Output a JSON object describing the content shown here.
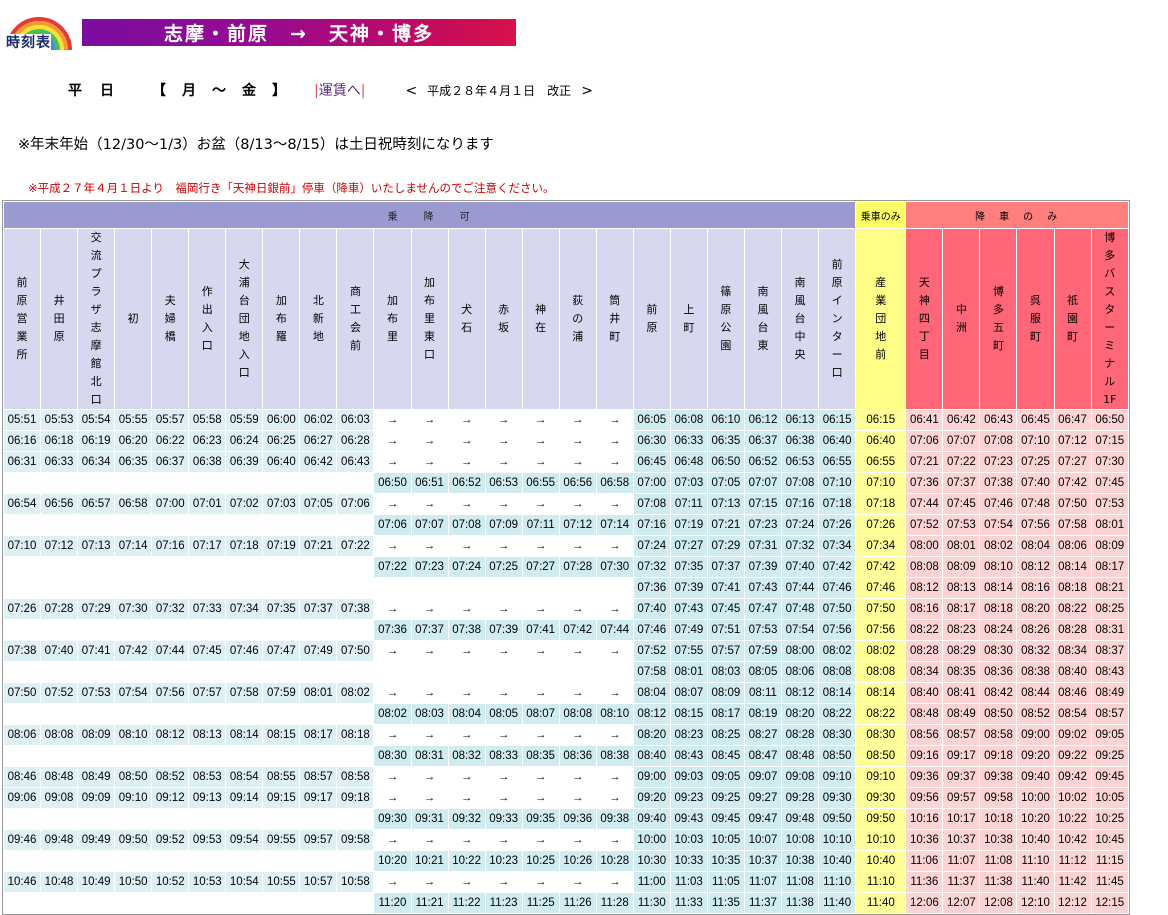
{
  "logo": {
    "text": "時刻表"
  },
  "route": {
    "title": "志摩・前原　→　天神・博多"
  },
  "day": {
    "label": "平日",
    "range": "【月～金】"
  },
  "fare": {
    "link": "運賃へ"
  },
  "revision": {
    "prev": "<",
    "text": "平成２８年４月１日　改正",
    "next": ">"
  },
  "notes": {
    "main": "※年末年始（12/30～1/3）お盆（8/13～8/15）は土日祝時刻になります",
    "red": "※平成２７年４月１日より　福岡行き「天神日銀前」停車（降車）いたしませんのでご注意ください。"
  },
  "groups": {
    "board": "乗　　降　　可",
    "ride": "乗車のみ",
    "alight": "降　車　の　み"
  },
  "stops": [
    "前原営業所",
    "井田原",
    "交流プラザ志摩館北口",
    "初",
    "夫婦橋",
    "作出入口",
    "大浦台団地入口",
    "加布羅",
    "北新地",
    "商工会前",
    "加布里",
    "加布里東口",
    "犬石",
    "赤坂",
    "神在",
    "荻の浦",
    "筒井町",
    "前原",
    "上町",
    "篠原公園",
    "南風台東",
    "南風台中央",
    "前原インター口",
    "産業団地前",
    "天神四丁目",
    "中洲",
    "博多五町",
    "呉服町",
    "祇園町",
    "博多バスターミナル1F"
  ],
  "arrow": "→",
  "rows": [
    {
      "a": [
        "05:51",
        "05:53",
        "05:54",
        "05:55",
        "05:57",
        "05:58",
        "05:59",
        "06:00",
        "06:02",
        "06:03"
      ],
      "b": "arrow",
      "c": [
        "06:05",
        "06:08",
        "06:10",
        "06:12",
        "06:13",
        "06:15"
      ],
      "r": "06:15",
      "p": [
        "06:41",
        "06:42",
        "06:43",
        "06:45",
        "06:47",
        "06:50"
      ]
    },
    {
      "a": [
        "06:16",
        "06:18",
        "06:19",
        "06:20",
        "06:22",
        "06:23",
        "06:24",
        "06:25",
        "06:27",
        "06:28"
      ],
      "b": "arrow",
      "c": [
        "06:30",
        "06:33",
        "06:35",
        "06:37",
        "06:38",
        "06:40"
      ],
      "r": "06:40",
      "p": [
        "07:06",
        "07:07",
        "07:08",
        "07:10",
        "07:12",
        "07:15"
      ]
    },
    {
      "a": [
        "06:31",
        "06:33",
        "06:34",
        "06:35",
        "06:37",
        "06:38",
        "06:39",
        "06:40",
        "06:42",
        "06:43"
      ],
      "b": "arrow",
      "c": [
        "06:45",
        "06:48",
        "06:50",
        "06:52",
        "06:53",
        "06:55"
      ],
      "r": "06:55",
      "p": [
        "07:21",
        "07:22",
        "07:23",
        "07:25",
        "07:27",
        "07:30"
      ]
    },
    {
      "a": null,
      "b": [
        "06:50",
        "06:51",
        "06:52",
        "06:53",
        "06:55",
        "06:56",
        "06:58"
      ],
      "c": [
        "07:00",
        "07:03",
        "07:05",
        "07:07",
        "07:08",
        "07:10"
      ],
      "r": "07:10",
      "p": [
        "07:36",
        "07:37",
        "07:38",
        "07:40",
        "07:42",
        "07:45"
      ]
    },
    {
      "a": [
        "06:54",
        "06:56",
        "06:57",
        "06:58",
        "07:00",
        "07:01",
        "07:02",
        "07:03",
        "07:05",
        "07:06"
      ],
      "b": "arrow",
      "c": [
        "07:08",
        "07:11",
        "07:13",
        "07:15",
        "07:16",
        "07:18"
      ],
      "r": "07:18",
      "p": [
        "07:44",
        "07:45",
        "07:46",
        "07:48",
        "07:50",
        "07:53"
      ]
    },
    {
      "a": null,
      "b": [
        "07:06",
        "07:07",
        "07:08",
        "07:09",
        "07:11",
        "07:12",
        "07:14"
      ],
      "c": [
        "07:16",
        "07:19",
        "07:21",
        "07:23",
        "07:24",
        "07:26"
      ],
      "r": "07:26",
      "p": [
        "07:52",
        "07:53",
        "07:54",
        "07:56",
        "07:58",
        "08:01"
      ]
    },
    {
      "a": [
        "07:10",
        "07:12",
        "07:13",
        "07:14",
        "07:16",
        "07:17",
        "07:18",
        "07:19",
        "07:21",
        "07:22"
      ],
      "b": "arrow",
      "c": [
        "07:24",
        "07:27",
        "07:29",
        "07:31",
        "07:32",
        "07:34"
      ],
      "r": "07:34",
      "p": [
        "08:00",
        "08:01",
        "08:02",
        "08:04",
        "08:06",
        "08:09"
      ]
    },
    {
      "a": null,
      "b": [
        "07:22",
        "07:23",
        "07:24",
        "07:25",
        "07:27",
        "07:28",
        "07:30"
      ],
      "c": [
        "07:32",
        "07:35",
        "07:37",
        "07:39",
        "07:40",
        "07:42"
      ],
      "r": "07:42",
      "p": [
        "08:08",
        "08:09",
        "08:10",
        "08:12",
        "08:14",
        "08:17"
      ]
    },
    {
      "a": null,
      "b": null,
      "c": [
        "07:36",
        "07:39",
        "07:41",
        "07:43",
        "07:44",
        "07:46"
      ],
      "r": "07:46",
      "p": [
        "08:12",
        "08:13",
        "08:14",
        "08:16",
        "08:18",
        "08:21"
      ]
    },
    {
      "a": [
        "07:26",
        "07:28",
        "07:29",
        "07:30",
        "07:32",
        "07:33",
        "07:34",
        "07:35",
        "07:37",
        "07:38"
      ],
      "b": "arrow",
      "c": [
        "07:40",
        "07:43",
        "07:45",
        "07:47",
        "07:48",
        "07:50"
      ],
      "r": "07:50",
      "p": [
        "08:16",
        "08:17",
        "08:18",
        "08:20",
        "08:22",
        "08:25"
      ]
    },
    {
      "a": null,
      "b": [
        "07:36",
        "07:37",
        "07:38",
        "07:39",
        "07:41",
        "07:42",
        "07:44"
      ],
      "c": [
        "07:46",
        "07:49",
        "07:51",
        "07:53",
        "07:54",
        "07:56"
      ],
      "r": "07:56",
      "p": [
        "08:22",
        "08:23",
        "08:24",
        "08:26",
        "08:28",
        "08:31"
      ]
    },
    {
      "a": [
        "07:38",
        "07:40",
        "07:41",
        "07:42",
        "07:44",
        "07:45",
        "07:46",
        "07:47",
        "07:49",
        "07:50"
      ],
      "b": "arrow",
      "c": [
        "07:52",
        "07:55",
        "07:57",
        "07:59",
        "08:00",
        "08:02"
      ],
      "r": "08:02",
      "p": [
        "08:28",
        "08:29",
        "08:30",
        "08:32",
        "08:34",
        "08:37"
      ]
    },
    {
      "a": null,
      "b": null,
      "c": [
        "07:58",
        "08:01",
        "08:03",
        "08:05",
        "08:06",
        "08:08"
      ],
      "r": "08:08",
      "p": [
        "08:34",
        "08:35",
        "08:36",
        "08:38",
        "08:40",
        "08:43"
      ]
    },
    {
      "a": [
        "07:50",
        "07:52",
        "07:53",
        "07:54",
        "07:56",
        "07:57",
        "07:58",
        "07:59",
        "08:01",
        "08:02"
      ],
      "b": "arrow",
      "c": [
        "08:04",
        "08:07",
        "08:09",
        "08:11",
        "08:12",
        "08:14"
      ],
      "r": "08:14",
      "p": [
        "08:40",
        "08:41",
        "08:42",
        "08:44",
        "08:46",
        "08:49"
      ]
    },
    {
      "a": null,
      "b": [
        "08:02",
        "08:03",
        "08:04",
        "08:05",
        "08:07",
        "08:08",
        "08:10"
      ],
      "c": [
        "08:12",
        "08:15",
        "08:17",
        "08:19",
        "08:20",
        "08:22"
      ],
      "r": "08:22",
      "p": [
        "08:48",
        "08:49",
        "08:50",
        "08:52",
        "08:54",
        "08:57"
      ]
    },
    {
      "a": [
        "08:06",
        "08:08",
        "08:09",
        "08:10",
        "08:12",
        "08:13",
        "08:14",
        "08:15",
        "08:17",
        "08:18"
      ],
      "b": "arrow",
      "c": [
        "08:20",
        "08:23",
        "08:25",
        "08:27",
        "08:28",
        "08:30"
      ],
      "r": "08:30",
      "p": [
        "08:56",
        "08:57",
        "08:58",
        "09:00",
        "09:02",
        "09:05"
      ]
    },
    {
      "a": null,
      "b": [
        "08:30",
        "08:31",
        "08:32",
        "08:33",
        "08:35",
        "08:36",
        "08:38"
      ],
      "c": [
        "08:40",
        "08:43",
        "08:45",
        "08:47",
        "08:48",
        "08:50"
      ],
      "r": "08:50",
      "p": [
        "09:16",
        "09:17",
        "09:18",
        "09:20",
        "09:22",
        "09:25"
      ]
    },
    {
      "a": [
        "08:46",
        "08:48",
        "08:49",
        "08:50",
        "08:52",
        "08:53",
        "08:54",
        "08:55",
        "08:57",
        "08:58"
      ],
      "b": "arrow",
      "c": [
        "09:00",
        "09:03",
        "09:05",
        "09:07",
        "09:08",
        "09:10"
      ],
      "r": "09:10",
      "p": [
        "09:36",
        "09:37",
        "09:38",
        "09:40",
        "09:42",
        "09:45"
      ]
    },
    {
      "a": [
        "09:06",
        "09:08",
        "09:09",
        "09:10",
        "09:12",
        "09:13",
        "09:14",
        "09:15",
        "09:17",
        "09:18"
      ],
      "b": "arrow",
      "c": [
        "09:20",
        "09:23",
        "09:25",
        "09:27",
        "09:28",
        "09:30"
      ],
      "r": "09:30",
      "p": [
        "09:56",
        "09:57",
        "09:58",
        "10:00",
        "10:02",
        "10:05"
      ]
    },
    {
      "a": null,
      "b": [
        "09:30",
        "09:31",
        "09:32",
        "09:33",
        "09:35",
        "09:36",
        "09:38"
      ],
      "c": [
        "09:40",
        "09:43",
        "09:45",
        "09:47",
        "09:48",
        "09:50"
      ],
      "r": "09:50",
      "p": [
        "10:16",
        "10:17",
        "10:18",
        "10:20",
        "10:22",
        "10:25"
      ]
    },
    {
      "a": [
        "09:46",
        "09:48",
        "09:49",
        "09:50",
        "09:52",
        "09:53",
        "09:54",
        "09:55",
        "09:57",
        "09:58"
      ],
      "b": "arrow",
      "c": [
        "10:00",
        "10:03",
        "10:05",
        "10:07",
        "10:08",
        "10:10"
      ],
      "r": "10:10",
      "p": [
        "10:36",
        "10:37",
        "10:38",
        "10:40",
        "10:42",
        "10:45"
      ]
    },
    {
      "a": null,
      "b": [
        "10:20",
        "10:21",
        "10:22",
        "10:23",
        "10:25",
        "10:26",
        "10:28"
      ],
      "c": [
        "10:30",
        "10:33",
        "10:35",
        "10:37",
        "10:38",
        "10:40"
      ],
      "r": "10:40",
      "p": [
        "11:06",
        "11:07",
        "11:08",
        "11:10",
        "11:12",
        "11:15"
      ]
    },
    {
      "a": [
        "10:46",
        "10:48",
        "10:49",
        "10:50",
        "10:52",
        "10:53",
        "10:54",
        "10:55",
        "10:57",
        "10:58"
      ],
      "b": "arrow",
      "c": [
        "11:00",
        "11:03",
        "11:05",
        "11:07",
        "11:08",
        "11:10"
      ],
      "r": "11:10",
      "p": [
        "11:36",
        "11:37",
        "11:38",
        "11:40",
        "11:42",
        "11:45"
      ]
    },
    {
      "a": null,
      "b": [
        "11:20",
        "11:21",
        "11:22",
        "11:23",
        "11:25",
        "11:26",
        "11:28"
      ],
      "c": [
        "11:30",
        "11:33",
        "11:35",
        "11:37",
        "11:38",
        "11:40"
      ],
      "r": "11:40",
      "p": [
        "12:06",
        "12:07",
        "12:08",
        "12:10",
        "12:12",
        "12:15"
      ]
    }
  ]
}
